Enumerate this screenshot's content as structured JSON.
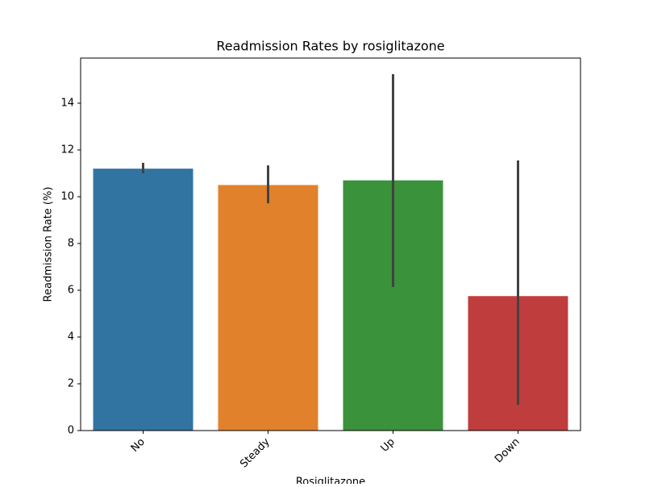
{
  "chart_data": {
    "type": "bar",
    "title": "Readmission Rates by rosiglitazone",
    "x_label": "Rosiglitazone",
    "y_label": "Readmission Rate (%)",
    "categories": [
      "No",
      "Steady",
      "Up",
      "Down"
    ],
    "values": [
      11.2,
      10.5,
      10.7,
      5.75
    ],
    "ci_low": [
      11.0,
      9.72,
      6.14,
      1.1
    ],
    "ci_high": [
      11.45,
      11.34,
      15.24,
      11.55
    ],
    "colors": [
      "#3274a1",
      "#e1812c",
      "#3a923a",
      "#c03d3e"
    ],
    "error_color": "#424242",
    "ylim": [
      0,
      15.93
    ],
    "yticks": [
      0,
      2,
      4,
      6,
      8,
      10,
      12,
      14
    ],
    "grid": false
  }
}
